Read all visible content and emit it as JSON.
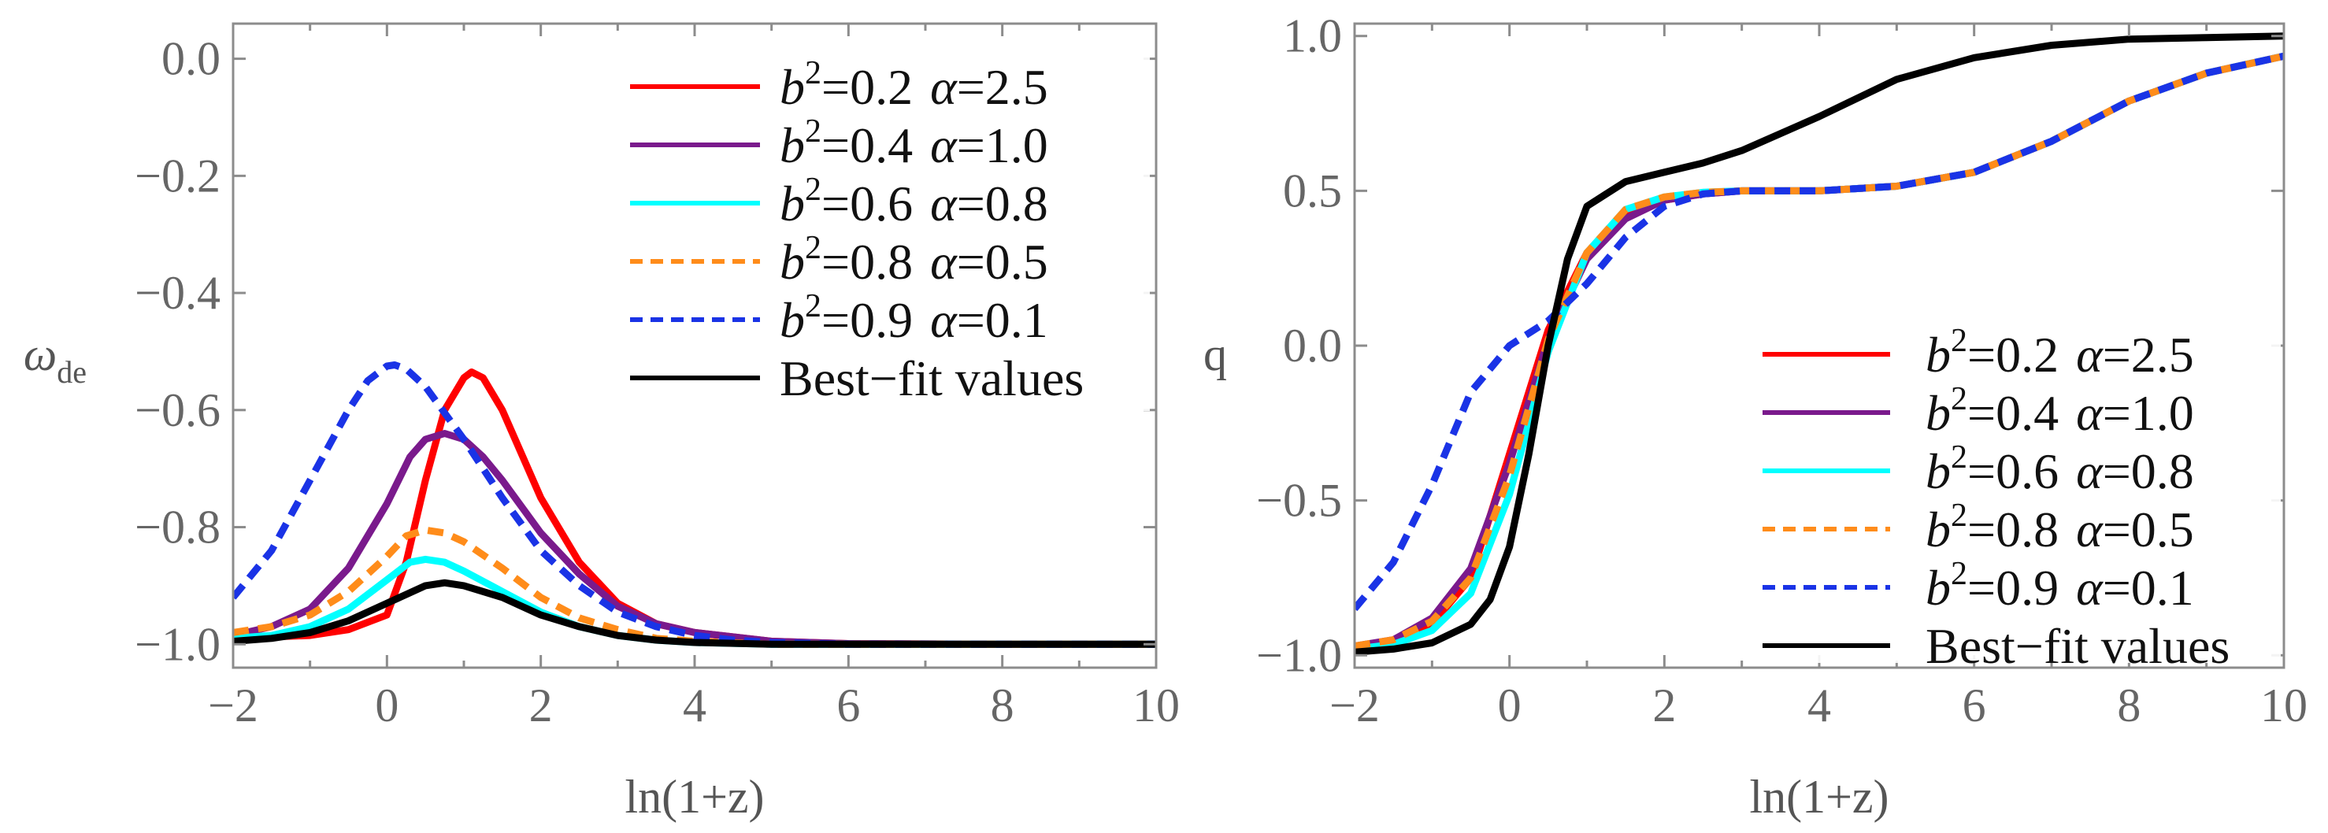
{
  "colors": {
    "red": "#ff0000",
    "purple": "#7a1a8c",
    "cyan": "#00ffff",
    "orange": "#ff8c1a",
    "blue": "#1a33e6",
    "black": "#000000",
    "axes": "#8c8c8c",
    "tick_text": "#666666"
  },
  "chart_data": [
    {
      "type": "line",
      "xlabel": "ln(1+z)",
      "ylabel": "ω",
      "ylabel_sub": "de",
      "xlim": [
        -2,
        10
      ],
      "ylim": [
        -1.04,
        0.06
      ],
      "xticks": [
        -2,
        0,
        2,
        4,
        6,
        8,
        10
      ],
      "xtick_labels": [
        "−2",
        "0",
        "2",
        "4",
        "6",
        "8",
        "10"
      ],
      "yticks": [
        0.0,
        -0.2,
        -0.4,
        -0.6,
        -0.8,
        -1.0
      ],
      "ytick_labels": [
        "0.0",
        "−0.2",
        "−0.4",
        "−0.6",
        "−0.8",
        "−1.0"
      ],
      "legend_position": "top-right",
      "series": [
        {
          "name": "b²=0.2  α=2.5",
          "b_label": "b",
          "exp": "2",
          "b_value": "=0.2",
          "alpha_label": "α",
          "alpha_value": "=2.5",
          "color": "#ff0000",
          "dash": false,
          "x": [
            -2,
            -1,
            -0.5,
            0,
            0.25,
            0.5,
            0.75,
            1,
            1.1,
            1.25,
            1.5,
            2,
            2.5,
            3,
            3.5,
            4,
            5,
            6,
            8,
            10
          ],
          "y": [
            -0.99,
            -0.985,
            -0.975,
            -0.95,
            -0.86,
            -0.72,
            -0.6,
            -0.545,
            -0.535,
            -0.545,
            -0.6,
            -0.75,
            -0.86,
            -0.93,
            -0.965,
            -0.98,
            -0.995,
            -0.999,
            -1.0,
            -1.0
          ]
        },
        {
          "name": "b²=0.4  α=1.0",
          "b_label": "b",
          "exp": "2",
          "b_value": "=0.4",
          "alpha_label": "α",
          "alpha_value": "=1.0",
          "color": "#7a1a8c",
          "dash": false,
          "x": [
            -2,
            -1.5,
            -1,
            -0.5,
            0,
            0.3,
            0.5,
            0.75,
            1,
            1.25,
            1.5,
            2,
            2.5,
            3,
            3.5,
            4,
            5,
            6,
            8,
            10
          ],
          "y": [
            -0.985,
            -0.97,
            -0.94,
            -0.87,
            -0.76,
            -0.68,
            -0.65,
            -0.64,
            -0.65,
            -0.68,
            -0.72,
            -0.81,
            -0.88,
            -0.935,
            -0.965,
            -0.98,
            -0.995,
            -0.999,
            -1.0,
            -1.0
          ]
        },
        {
          "name": "b²=0.6  α=0.8",
          "b_label": "b",
          "exp": "2",
          "b_value": "=0.6",
          "alpha_label": "α",
          "alpha_value": "=0.8",
          "color": "#00ffff",
          "dash": false,
          "x": [
            -2,
            -1.5,
            -1,
            -0.5,
            0,
            0.3,
            0.5,
            0.75,
            1,
            1.5,
            2,
            2.5,
            3,
            3.5,
            4,
            5,
            6,
            8,
            10
          ],
          "y": [
            -0.99,
            -0.985,
            -0.97,
            -0.94,
            -0.89,
            -0.86,
            -0.855,
            -0.86,
            -0.875,
            -0.91,
            -0.945,
            -0.97,
            -0.985,
            -0.993,
            -0.997,
            -1.0,
            -1.0,
            -1.0,
            -1.0
          ]
        },
        {
          "name": "b²=0.8  α=0.5",
          "b_label": "b",
          "exp": "2",
          "b_value": "=0.8",
          "alpha_label": "α",
          "alpha_value": "=0.5",
          "color": "#ff8c1a",
          "dash": true,
          "x": [
            -2,
            -1.5,
            -1,
            -0.5,
            0,
            0.25,
            0.5,
            0.75,
            1,
            1.5,
            2,
            2.5,
            3,
            3.5,
            4,
            5,
            6,
            8,
            10
          ],
          "y": [
            -0.98,
            -0.97,
            -0.95,
            -0.91,
            -0.85,
            -0.815,
            -0.805,
            -0.81,
            -0.825,
            -0.87,
            -0.92,
            -0.955,
            -0.975,
            -0.99,
            -0.995,
            -1.0,
            -1.0,
            -1.0,
            -1.0
          ]
        },
        {
          "name": "b²=0.9  α=0.1",
          "b_label": "b",
          "exp": "2",
          "b_value": "=0.9",
          "alpha_label": "α",
          "alpha_value": "=0.1",
          "color": "#1a33e6",
          "dash": true,
          "x": [
            -2,
            -1.5,
            -1,
            -0.5,
            -0.25,
            0,
            0.1,
            0.25,
            0.5,
            1,
            1.5,
            2,
            2.5,
            3,
            3.5,
            4,
            4.5,
            5,
            6,
            8,
            10
          ],
          "y": [
            -0.92,
            -0.84,
            -0.72,
            -0.6,
            -0.55,
            -0.525,
            -0.523,
            -0.53,
            -0.56,
            -0.65,
            -0.75,
            -0.84,
            -0.9,
            -0.945,
            -0.97,
            -0.985,
            -0.993,
            -0.997,
            -1.0,
            -1.0,
            -1.0
          ]
        },
        {
          "name": "Best−fit values",
          "color": "#000000",
          "dash": false,
          "x": [
            -2,
            -1.5,
            -1,
            -0.5,
            0,
            0.5,
            0.75,
            1,
            1.5,
            2,
            2.5,
            3,
            3.5,
            4,
            5,
            6,
            8,
            10
          ],
          "y": [
            -0.995,
            -0.99,
            -0.98,
            -0.96,
            -0.93,
            -0.9,
            -0.895,
            -0.9,
            -0.92,
            -0.95,
            -0.97,
            -0.985,
            -0.993,
            -0.997,
            -1.0,
            -1.0,
            -1.0,
            -1.0
          ]
        }
      ]
    },
    {
      "type": "line",
      "xlabel": "ln(1+z)",
      "ylabel": "q",
      "xlim": [
        -2,
        10
      ],
      "ylim": [
        -1.04,
        1.04
      ],
      "xticks": [
        -2,
        0,
        2,
        4,
        6,
        8,
        10
      ],
      "xtick_labels": [
        "−2",
        "0",
        "2",
        "4",
        "6",
        "8",
        "10"
      ],
      "yticks": [
        1.0,
        0.5,
        0.0,
        -0.5,
        -1.0
      ],
      "ytick_labels": [
        "1.0",
        "0.5",
        "0.0",
        "−0.5",
        "−1.0"
      ],
      "legend_position": "bottom-right",
      "series": [
        {
          "name": "b²=0.2  α=2.5",
          "b_label": "b",
          "exp": "2",
          "b_value": "=0.2",
          "alpha_label": "α",
          "alpha_value": "=2.5",
          "color": "#ff0000",
          "dash": false,
          "x": [
            -2,
            -1.5,
            -1,
            -0.5,
            0,
            0.5,
            1,
            1.5,
            2,
            2.5,
            3,
            4,
            5,
            6,
            7,
            8,
            9,
            10
          ],
          "y": [
            -0.98,
            -0.96,
            -0.9,
            -0.75,
            -0.35,
            0.05,
            0.3,
            0.42,
            0.47,
            0.49,
            0.5,
            0.5,
            0.515,
            0.56,
            0.66,
            0.79,
            0.88,
            0.935
          ]
        },
        {
          "name": "b²=0.4  α=1.0",
          "b_label": "b",
          "exp": "2",
          "b_value": "=0.4",
          "alpha_label": "α",
          "alpha_value": "=1.0",
          "color": "#7a1a8c",
          "dash": false,
          "x": [
            -2,
            -1.5,
            -1,
            -0.5,
            0,
            0.5,
            1,
            1.5,
            2,
            2.5,
            3,
            4,
            5,
            6,
            7,
            8,
            9,
            10
          ],
          "y": [
            -0.97,
            -0.95,
            -0.88,
            -0.72,
            -0.38,
            0.02,
            0.28,
            0.41,
            0.47,
            0.49,
            0.5,
            0.5,
            0.515,
            0.56,
            0.66,
            0.79,
            0.88,
            0.935
          ]
        },
        {
          "name": "b²=0.6  α=0.8",
          "b_label": "b",
          "exp": "2",
          "b_value": "=0.6",
          "alpha_label": "α",
          "alpha_value": "=0.8",
          "color": "#00ffff",
          "dash": false,
          "x": [
            -2,
            -1.5,
            -1,
            -0.5,
            0,
            0.5,
            1,
            1.5,
            2,
            2.5,
            3,
            4,
            5,
            6,
            7,
            8,
            9,
            10
          ],
          "y": [
            -0.98,
            -0.965,
            -0.92,
            -0.8,
            -0.48,
            -0.02,
            0.3,
            0.44,
            0.48,
            0.495,
            0.5,
            0.5,
            0.515,
            0.56,
            0.66,
            0.79,
            0.88,
            0.935
          ]
        },
        {
          "name": "b²=0.8  α=0.5",
          "b_label": "b",
          "exp": "2",
          "b_value": "=0.8",
          "alpha_label": "α",
          "alpha_value": "=0.5",
          "color": "#ff8c1a",
          "dash": true,
          "x": [
            -2,
            -1.5,
            -1,
            -0.5,
            0,
            0.5,
            1,
            1.5,
            2,
            2.5,
            3,
            4,
            5,
            6,
            7,
            8,
            9,
            10
          ],
          "y": [
            -0.97,
            -0.95,
            -0.89,
            -0.75,
            -0.42,
            0.02,
            0.3,
            0.44,
            0.48,
            0.495,
            0.5,
            0.5,
            0.515,
            0.56,
            0.66,
            0.79,
            0.88,
            0.935
          ]
        },
        {
          "name": "b²=0.9  α=0.1",
          "b_label": "b",
          "exp": "2",
          "b_value": "=0.9",
          "alpha_label": "α",
          "alpha_value": "=0.1",
          "color": "#1a33e6",
          "dash": true,
          "x": [
            -2,
            -1.5,
            -1,
            -0.5,
            0,
            0.5,
            1,
            1.5,
            2,
            2.5,
            3,
            4,
            5,
            6,
            7,
            8,
            9,
            10
          ],
          "y": [
            -0.85,
            -0.7,
            -0.45,
            -0.15,
            0.0,
            0.08,
            0.2,
            0.35,
            0.45,
            0.49,
            0.5,
            0.5,
            0.515,
            0.56,
            0.66,
            0.79,
            0.88,
            0.935
          ]
        },
        {
          "name": "Best−fit values",
          "color": "#000000",
          "dash": false,
          "x": [
            -2,
            -1.5,
            -1,
            -0.5,
            -0.25,
            0,
            0.25,
            0.5,
            0.75,
            1,
            1.5,
            2,
            2.5,
            3,
            4,
            5,
            6,
            7,
            8,
            9,
            10
          ],
          "y": [
            -0.99,
            -0.98,
            -0.96,
            -0.9,
            -0.82,
            -0.65,
            -0.35,
            0.0,
            0.28,
            0.45,
            0.53,
            0.56,
            0.59,
            0.63,
            0.74,
            0.86,
            0.93,
            0.97,
            0.99,
            0.995,
            1.0
          ]
        }
      ]
    }
  ]
}
